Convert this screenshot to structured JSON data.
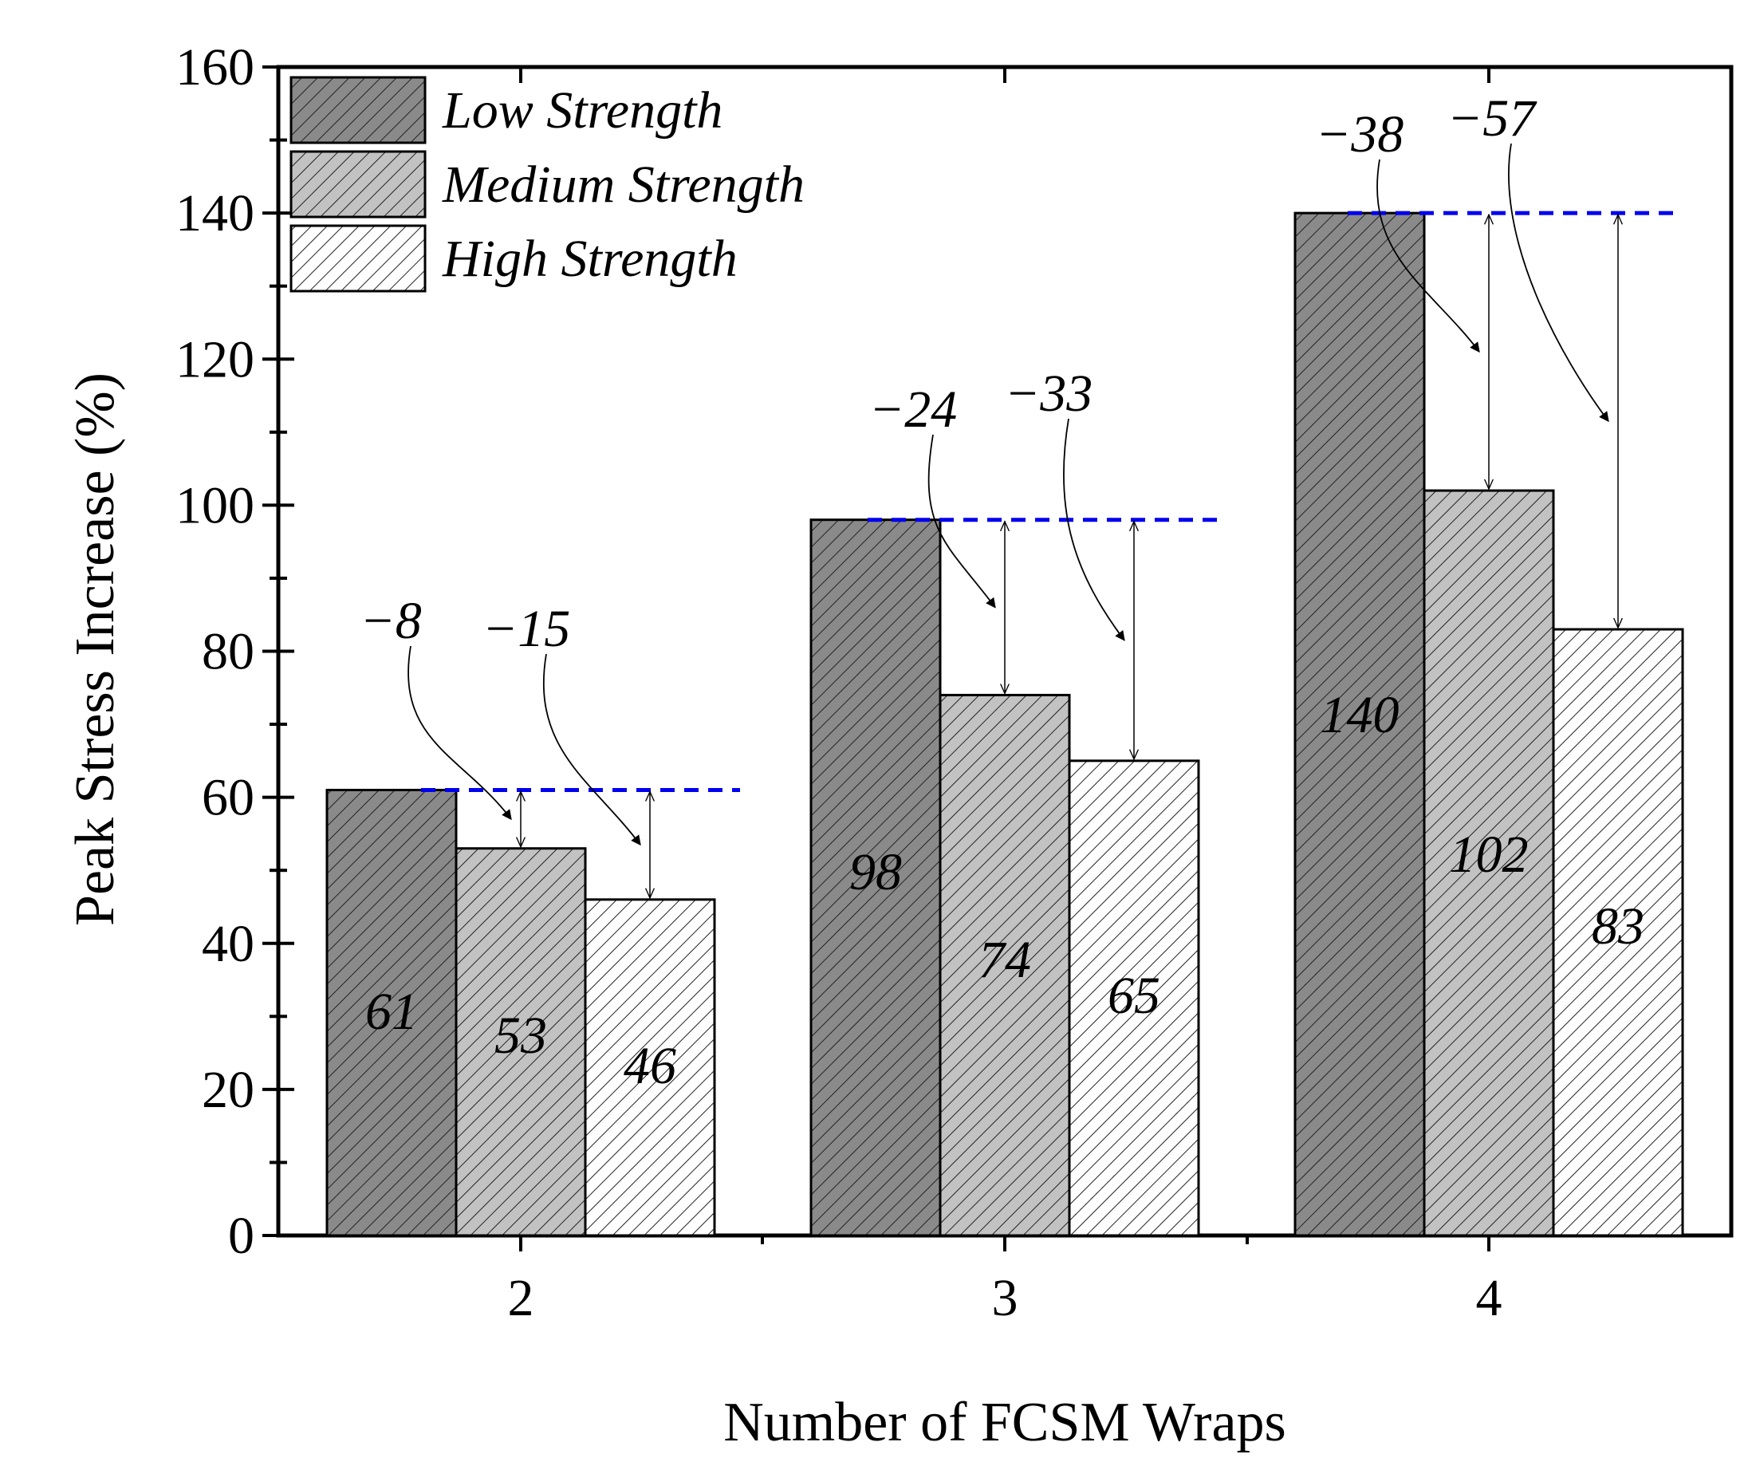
{
  "chart_data": {
    "type": "bar",
    "title": "",
    "xlabel": "Number of FCSM Wraps",
    "ylabel": "Peak Stress Increase (%)",
    "ylim": [
      0,
      160
    ],
    "yticks": [
      "0",
      "20",
      "40",
      "60",
      "80",
      "100",
      "120",
      "140",
      "160"
    ],
    "categories": [
      "2",
      "3",
      "4"
    ],
    "series": [
      {
        "name": "Low Strength",
        "values": [
          61,
          98,
          140
        ],
        "value_labels": [
          "61",
          "98",
          "140"
        ],
        "fill": "#8a8a8a"
      },
      {
        "name": "Medium Strength",
        "values": [
          53,
          74,
          102
        ],
        "value_labels": [
          "53",
          "74",
          "102"
        ],
        "fill": "#c2c2c2"
      },
      {
        "name": "High Strength",
        "values": [
          46,
          65,
          83
        ],
        "value_labels": [
          "46",
          "65",
          "83"
        ],
        "fill": "#ffffff"
      }
    ],
    "differences": [
      {
        "category": "2",
        "medium": "−8",
        "high": "−15"
      },
      {
        "category": "3",
        "medium": "−24",
        "high": "−33"
      },
      {
        "category": "4",
        "medium": "−38",
        "high": "−57"
      }
    ],
    "legend_position": "top-left",
    "grid": false,
    "colors": {
      "reference_line": "#0000ee",
      "axis": "#000000",
      "hatch": "#222222"
    }
  }
}
